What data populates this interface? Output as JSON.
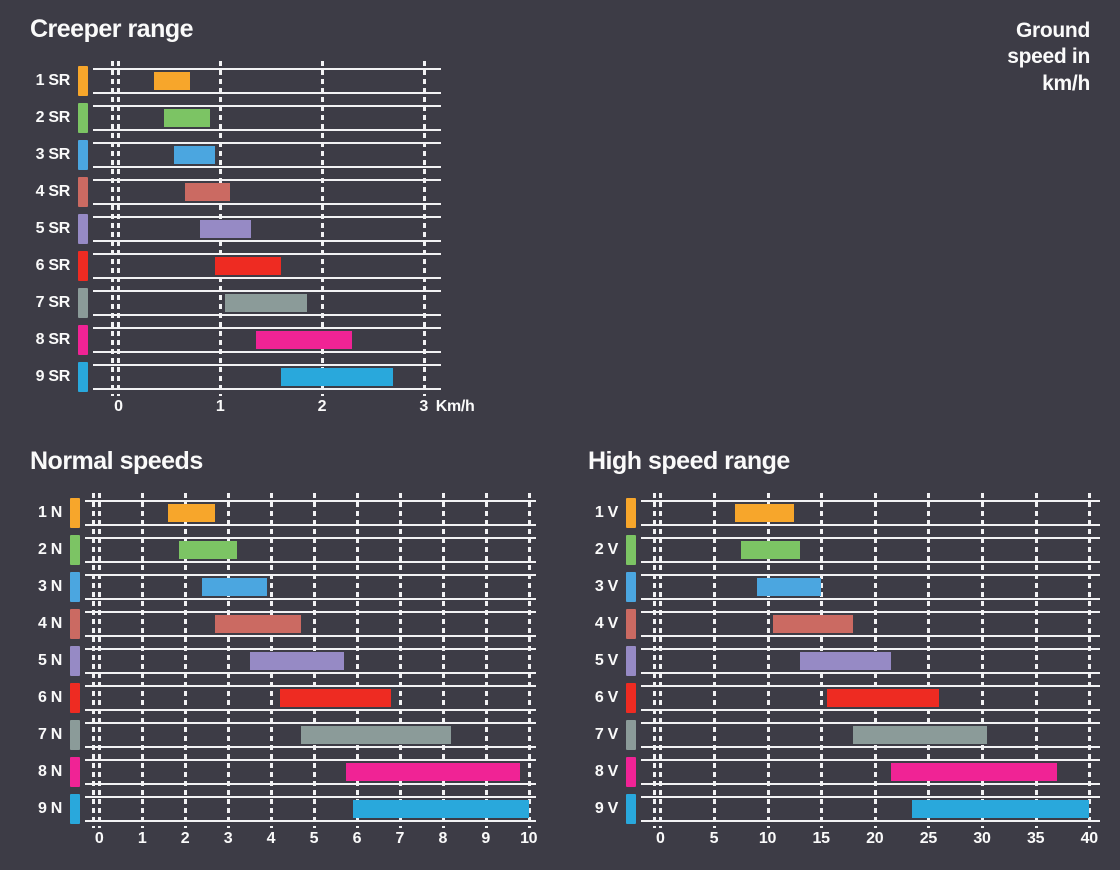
{
  "ground_speed_label": "Ground\nspeed in\nkm/h",
  "colors": {
    "background": "#3d3c46",
    "line": "#f2f2f4",
    "text": "#fafafa",
    "gear_palette": [
      "#F7A62B",
      "#7CC464",
      "#4BA6E0",
      "#CB6A62",
      "#968AC5",
      "#EE2B22",
      "#8B9B99",
      "#F02395",
      "#29A8DC"
    ]
  },
  "chart_data": [
    {
      "type": "bar",
      "subtype": "horizontal-range-bars",
      "title": "Creeper range",
      "xlabel": "Km/h",
      "axis_ticks": [
        0,
        1,
        2,
        3
      ],
      "xlim": [
        0,
        3
      ],
      "grid": "dashed-vertical",
      "rows": [
        {
          "label": "1 SR",
          "range": [
            0.35,
            0.7
          ],
          "color": "#F7A62B"
        },
        {
          "label": "2 SR",
          "range": [
            0.45,
            0.9
          ],
          "color": "#7CC464"
        },
        {
          "label": "3 SR",
          "range": [
            0.55,
            0.95
          ],
          "color": "#4BA6E0"
        },
        {
          "label": "4 SR",
          "range": [
            0.65,
            1.1
          ],
          "color": "#CB6A62"
        },
        {
          "label": "5 SR",
          "range": [
            0.8,
            1.3
          ],
          "color": "#968AC5"
        },
        {
          "label": "6 SR",
          "range": [
            0.95,
            1.6
          ],
          "color": "#EE2B22"
        },
        {
          "label": "7 SR",
          "range": [
            1.05,
            1.85
          ],
          "color": "#8B9B99"
        },
        {
          "label": "8 SR",
          "range": [
            1.35,
            2.3
          ],
          "color": "#F02395"
        },
        {
          "label": "9 SR",
          "range": [
            1.6,
            2.7
          ],
          "color": "#29A8DC"
        }
      ]
    },
    {
      "type": "bar",
      "subtype": "horizontal-range-bars",
      "title": "Normal speeds",
      "xlabel": "",
      "axis_ticks": [
        0,
        1,
        2,
        3,
        4,
        5,
        6,
        7,
        8,
        9,
        10
      ],
      "xlim": [
        0,
        10
      ],
      "grid": "dashed-vertical",
      "rows": [
        {
          "label": "1 N",
          "range": [
            1.6,
            2.7
          ],
          "color": "#F7A62B"
        },
        {
          "label": "2 N",
          "range": [
            1.85,
            3.2
          ],
          "color": "#7CC464"
        },
        {
          "label": "3 N",
          "range": [
            2.4,
            3.9
          ],
          "color": "#4BA6E0"
        },
        {
          "label": "4 N",
          "range": [
            2.7,
            4.7
          ],
          "color": "#CB6A62"
        },
        {
          "label": "5 N",
          "range": [
            3.5,
            5.7
          ],
          "color": "#968AC5"
        },
        {
          "label": "6 N",
          "range": [
            4.2,
            6.8
          ],
          "color": "#EE2B22"
        },
        {
          "label": "7 N",
          "range": [
            4.7,
            8.2
          ],
          "color": "#8B9B99"
        },
        {
          "label": "8 N",
          "range": [
            5.75,
            9.8
          ],
          "color": "#F02395"
        },
        {
          "label": "9 N",
          "range": [
            5.9,
            10.0
          ],
          "color": "#29A8DC"
        }
      ]
    },
    {
      "type": "bar",
      "subtype": "horizontal-range-bars",
      "title": "High speed range",
      "xlabel": "",
      "axis_ticks": [
        0,
        5,
        10,
        15,
        20,
        25,
        30,
        35,
        40
      ],
      "xlim": [
        0,
        40
      ],
      "grid": "dashed-vertical",
      "rows": [
        {
          "label": "1 V",
          "range": [
            7.0,
            12.5
          ],
          "color": "#F7A62B"
        },
        {
          "label": "2 V",
          "range": [
            7.5,
            13.0
          ],
          "color": "#7CC464"
        },
        {
          "label": "3 V",
          "range": [
            9.0,
            15.0
          ],
          "color": "#4BA6E0"
        },
        {
          "label": "4 V",
          "range": [
            10.5,
            18.0
          ],
          "color": "#CB6A62"
        },
        {
          "label": "5 V",
          "range": [
            13.0,
            21.5
          ],
          "color": "#968AC5"
        },
        {
          "label": "6 V",
          "range": [
            15.5,
            26.0
          ],
          "color": "#EE2B22"
        },
        {
          "label": "7 V",
          "range": [
            18.0,
            30.5
          ],
          "color": "#8B9B99"
        },
        {
          "label": "8 V",
          "range": [
            21.5,
            37.0
          ],
          "color": "#F02395"
        },
        {
          "label": "9 V",
          "range": [
            23.5,
            40.0
          ],
          "color": "#29A8DC"
        }
      ]
    }
  ]
}
